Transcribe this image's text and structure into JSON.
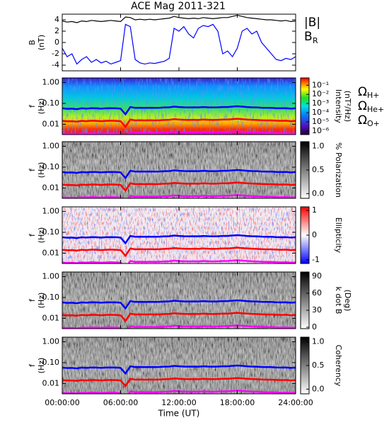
{
  "chart_data": [
    {
      "type": "line",
      "title": "ACE Mag 2011-321",
      "ylabel": [
        "B",
        "(nT)"
      ],
      "ylim": [
        -5,
        5
      ],
      "yticks": [
        -4,
        -2,
        0,
        2,
        4
      ],
      "x": [
        0,
        0.5,
        1,
        1.5,
        2,
        2.5,
        3,
        3.5,
        4,
        4.5,
        5,
        5.5,
        6,
        6.5,
        7,
        7.5,
        8,
        8.5,
        9,
        9.5,
        10,
        10.5,
        11,
        11.5,
        12,
        12.5,
        13,
        13.5,
        14,
        14.5,
        15,
        15.5,
        16,
        16.5,
        17,
        17.5,
        18,
        18.5,
        19,
        19.5,
        20,
        20.5,
        21,
        21.5,
        22,
        22.5,
        23,
        23.5,
        24
      ],
      "series": [
        {
          "name": "|B|",
          "color": "#000000",
          "values": [
            3.8,
            3.6,
            3.7,
            3.5,
            3.8,
            3.7,
            3.9,
            3.8,
            3.7,
            3.8,
            3.9,
            3.8,
            3.7,
            4.5,
            4.4,
            4.0,
            4.1,
            4.0,
            4.1,
            4.0,
            4.1,
            4.2,
            4.3,
            4.6,
            4.4,
            4.3,
            4.2,
            4.3,
            4.2,
            4.4,
            4.3,
            4.2,
            4.3,
            4.4,
            4.4,
            4.6,
            4.8,
            4.6,
            4.4,
            4.3,
            4.2,
            4.1,
            4.0,
            4.0,
            3.9,
            3.8,
            3.9,
            3.7,
            3.8
          ]
        },
        {
          "name": "B",
          "subscript": "R",
          "color": "#0000ff",
          "values": [
            -1.0,
            -2.5,
            -2.0,
            -3.8,
            -3.0,
            -2.5,
            -3.5,
            -3.0,
            -3.6,
            -3.3,
            -3.8,
            -3.5,
            -3.2,
            3.2,
            2.8,
            -3.0,
            -3.6,
            -3.8,
            -3.6,
            -3.7,
            -3.5,
            -3.3,
            -2.8,
            2.5,
            2.0,
            2.8,
            1.5,
            0.8,
            2.5,
            3.0,
            2.8,
            3.2,
            2.0,
            -2.0,
            -1.5,
            -2.5,
            -1.0,
            2.0,
            2.5,
            1.5,
            2.0,
            0.0,
            -1.0,
            -2.0,
            -3.0,
            -3.2,
            -2.8,
            -3.0,
            -2.5
          ]
        }
      ]
    },
    {
      "type": "spectrogram",
      "ylabel": [
        "f",
        "(Hz)"
      ],
      "ylog": true,
      "ylim": [
        0.0032,
        1.66
      ],
      "yticks": [
        {
          "value": 1,
          "label": "1.00"
        },
        {
          "value": 0.1,
          "label": "0.10"
        },
        0.01
      ],
      "background": "rainbow",
      "colorbar": {
        "label": [
          "Intensity",
          "(nT²/Hz)"
        ],
        "log": true,
        "colormap": "rainbow",
        "clim": [
          4e-07,
          0.63
        ],
        "ticks": [
          {
            "value": 0.1,
            "label": "10⁻¹"
          },
          {
            "value": 0.01,
            "label": "10⁻²"
          },
          {
            "value": 0.001,
            "label": "10⁻³"
          },
          {
            "value": 0.0001,
            "label": "10⁻⁴"
          },
          {
            "value": 1e-05,
            "label": "10⁻⁵"
          },
          {
            "value": 1e-06,
            "label": "10⁻⁶"
          }
        ]
      },
      "series": [
        {
          "name": "Ω",
          "subscript": "H+",
          "color": "#0000ff",
          "values": [
            0.058,
            0.055,
            0.056,
            0.053,
            0.058,
            0.056,
            0.059,
            0.058,
            0.056,
            0.058,
            0.059,
            0.058,
            0.056,
            0.03,
            0.067,
            0.061,
            0.062,
            0.061,
            0.062,
            0.061,
            0.062,
            0.064,
            0.065,
            0.07,
            0.067,
            0.065,
            0.064,
            0.065,
            0.064,
            0.067,
            0.065,
            0.064,
            0.065,
            0.067,
            0.067,
            0.07,
            0.073,
            0.07,
            0.067,
            0.065,
            0.064,
            0.062,
            0.061,
            0.061,
            0.059,
            0.058,
            0.059,
            0.056,
            0.058
          ]
        },
        {
          "name": "Ω",
          "subscript": "He+",
          "color": "#ff0000",
          "values": [
            0.0145,
            0.0138,
            0.014,
            0.0133,
            0.0145,
            0.014,
            0.0148,
            0.0145,
            0.014,
            0.0145,
            0.0148,
            0.0145,
            0.014,
            0.0075,
            0.0168,
            0.0153,
            0.0155,
            0.0153,
            0.0155,
            0.0153,
            0.0155,
            0.016,
            0.0163,
            0.0175,
            0.0168,
            0.0163,
            0.016,
            0.0163,
            0.016,
            0.0168,
            0.0163,
            0.016,
            0.0163,
            0.0168,
            0.0168,
            0.0175,
            0.0183,
            0.0175,
            0.0168,
            0.0163,
            0.016,
            0.0155,
            0.0153,
            0.0153,
            0.0148,
            0.0145,
            0.0148,
            0.014,
            0.0145
          ]
        },
        {
          "name": "Ω",
          "subscript": "O+",
          "color": "#ff00ff",
          "values": [
            0.0036,
            0.0034,
            0.0035,
            0.0033,
            0.0036,
            0.0035,
            0.0037,
            0.0036,
            0.0035,
            0.0036,
            0.0037,
            0.0036,
            0.0035,
            0.0019,
            0.0042,
            0.0038,
            0.0039,
            0.0038,
            0.0039,
            0.0038,
            0.0039,
            0.004,
            0.0041,
            0.0044,
            0.0042,
            0.0041,
            0.004,
            0.0041,
            0.004,
            0.0042,
            0.0041,
            0.004,
            0.0041,
            0.0042,
            0.0042,
            0.0044,
            0.0046,
            0.0044,
            0.0042,
            0.0041,
            0.004,
            0.0039,
            0.0038,
            0.0038,
            0.0037,
            0.0036,
            0.0037,
            0.0035,
            0.0036
          ]
        }
      ]
    },
    {
      "type": "spectrogram",
      "ylabel": [
        "f",
        "(Hz)"
      ],
      "ylog": true,
      "ylim": [
        0.0032,
        1.66
      ],
      "yticks": [
        {
          "value": 1,
          "label": "1.00"
        },
        {
          "value": 0.1,
          "label": "0.10"
        },
        0.01
      ],
      "background": "gray",
      "colorbar": {
        "label": [
          "% Polarization"
        ],
        "colormap": "gray",
        "clim": [
          -0.1,
          1.1
        ],
        "ticks": [
          {
            "value": 1,
            "label": "1.0"
          },
          0.5,
          {
            "value": 0,
            "label": "0.0"
          }
        ]
      }
    },
    {
      "type": "spectrogram",
      "ylabel": [
        "f",
        "(Hz)"
      ],
      "ylog": true,
      "ylim": [
        0.0032,
        1.66
      ],
      "yticks": [
        {
          "value": 1,
          "label": "1.00"
        },
        {
          "value": 0.1,
          "label": "0.10"
        },
        0.01
      ],
      "background": "ellipticity",
      "colorbar": {
        "label": [
          "Ellipticity"
        ],
        "colormap": "bwr",
        "clim": [
          -1.15,
          1.15
        ],
        "ticks": [
          1,
          0,
          -1
        ]
      }
    },
    {
      "type": "spectrogram",
      "ylabel": [
        "f",
        "(Hz)"
      ],
      "ylog": true,
      "ylim": [
        0.0032,
        1.66
      ],
      "yticks": [
        {
          "value": 1,
          "label": "1.00"
        },
        {
          "value": 0.1,
          "label": "0.10"
        },
        0.01
      ],
      "background": "gray",
      "colorbar": {
        "label": [
          "k dot B",
          "(Deg)"
        ],
        "colormap": "gray",
        "clim": [
          -2.5,
          97.5
        ],
        "ticks": [
          90,
          60,
          30,
          0
        ]
      }
    },
    {
      "type": "spectrogram",
      "ylabel": [
        "f",
        "(Hz)"
      ],
      "ylog": true,
      "ylim": [
        0.0032,
        1.66
      ],
      "yticks": [
        {
          "value": 1,
          "label": "1.00"
        },
        {
          "value": 0.1,
          "label": "0.10"
        },
        0.01
      ],
      "background": "gray",
      "colorbar": {
        "label": [
          "Coherency"
        ],
        "colormap": "gray",
        "clim": [
          -0.1,
          1.1
        ],
        "ticks": [
          {
            "value": 1,
            "label": "1.0"
          },
          0.5,
          {
            "value": 0,
            "label": "0.0"
          }
        ]
      },
      "xlim": [
        0,
        24
      ],
      "xticks": [
        {
          "value": 0,
          "label": "00:00:00"
        },
        {
          "value": 6,
          "label": "06:00:00"
        },
        {
          "value": 12,
          "label": "12:00:00"
        },
        {
          "value": 18,
          "label": "18:00:00"
        },
        {
          "value": 24,
          "label": "24:00:00"
        }
      ],
      "xlabel": "Time (UT)"
    }
  ]
}
